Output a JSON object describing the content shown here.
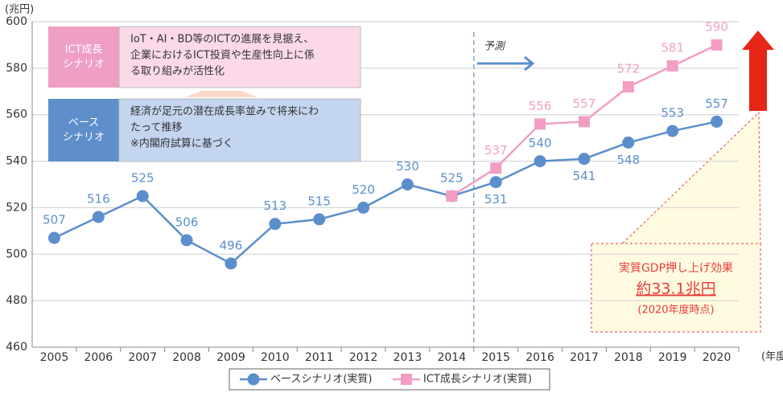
{
  "chart_data": {
    "type": "line",
    "y_unit": "(兆円)",
    "x_unit": "(年度)",
    "x": [
      2005,
      2006,
      2007,
      2008,
      2009,
      2010,
      2011,
      2012,
      2013,
      2014,
      2015,
      2016,
      2017,
      2018,
      2019,
      2020
    ],
    "xlim": [
      2004.5,
      2020.5
    ],
    "ylim": [
      460,
      600
    ],
    "yticks": [
      460,
      480,
      500,
      520,
      540,
      560,
      580,
      600
    ],
    "grid": true,
    "series": [
      {
        "name": "ベースシナリオ(実質)",
        "color": "#5b8fcb",
        "marker": "circle",
        "values": [
          507,
          516,
          525,
          506,
          496,
          513,
          515,
          520,
          530,
          525,
          531,
          540,
          541,
          548,
          553,
          557
        ]
      },
      {
        "name": "ICT成長シナリオ(実質)",
        "color": "#f29ec4",
        "marker": "square",
        "values": [
          null,
          null,
          null,
          null,
          null,
          null,
          null,
          null,
          null,
          525,
          537,
          556,
          557,
          572,
          581,
          590
        ]
      }
    ],
    "legend": "bottom",
    "forecast_label": "予測",
    "scenarios": [
      {
        "label": [
          "ICT成長",
          "シナリオ"
        ],
        "text": [
          "IoT・AI・BD等のICTの進展を見据え、",
          "企業におけるICT投資や生産性向上に係",
          "る取り組みが活性化"
        ]
      },
      {
        "label": [
          "ベース",
          "シナリオ"
        ],
        "text": [
          "経済が足元の潜在成長率並みで将来にわ",
          "たって推移",
          "※内閣府試算に基づく"
        ]
      }
    ],
    "effect": {
      "title": "実質GDP押し上げ効果",
      "amount": "約33.1兆円",
      "note": "(2020年度時点)"
    }
  }
}
